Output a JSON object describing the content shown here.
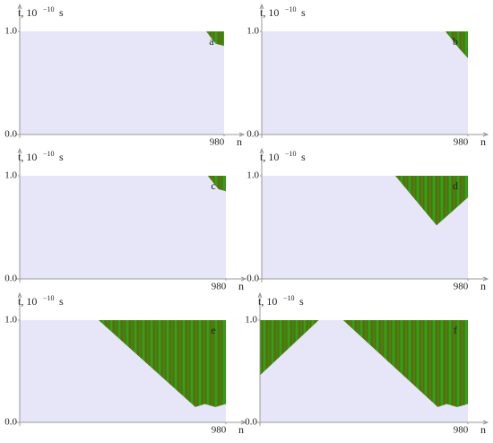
{
  "chart_data": [
    {
      "type": "area",
      "label": "a",
      "y_label": "t, 10",
      "y_label_exp": "−10",
      "y_label_unit": "s",
      "x_label": "n",
      "xlim": [
        0,
        980
      ],
      "ylim": [
        0,
        1
      ],
      "xticks": [
        980
      ],
      "yticks": [
        {
          "value": 0,
          "label": "0.0"
        },
        {
          "value": 1,
          "label": "1.0"
        }
      ],
      "color": "#3a8a12",
      "x": [
        894,
        940,
        980
      ],
      "values": [
        1,
        0.88,
        0.86
      ]
    },
    {
      "type": "area",
      "label": "b",
      "y_label": "t, 10",
      "y_label_exp": "−10",
      "y_label_unit": "s",
      "x_label": "n",
      "xlim": [
        0,
        980
      ],
      "ylim": [
        0,
        1
      ],
      "xticks": [
        980
      ],
      "yticks": [
        {
          "value": 0,
          "label": "0.0"
        },
        {
          "value": 1,
          "label": "1.0"
        }
      ],
      "color": "#3a8a12",
      "x": [
        873,
        940,
        980
      ],
      "values": [
        1,
        0.83,
        0.74
      ]
    },
    {
      "type": "area",
      "label": "c",
      "y_label": "t, 10",
      "y_label_exp": "−10",
      "y_label_unit": "s",
      "x_label": "n",
      "xlim": [
        0,
        980
      ],
      "ylim": [
        0,
        1
      ],
      "xticks": [
        980
      ],
      "yticks": [
        {
          "value": 0,
          "label": "0.0"
        },
        {
          "value": 1,
          "label": "1.0"
        }
      ],
      "color": "#3a8a12",
      "x": [
        894,
        945,
        980
      ],
      "values": [
        1,
        0.87,
        0.85
      ]
    },
    {
      "type": "area",
      "label": "d",
      "y_label": "t, 10",
      "y_label_exp": "−10",
      "y_label_unit": "s",
      "x_label": "n",
      "xlim": [
        0,
        980
      ],
      "ylim": [
        0,
        1
      ],
      "xticks": [
        980
      ],
      "yticks": [
        {
          "value": 0,
          "label": "0.0"
        },
        {
          "value": 1,
          "label": "1.0"
        }
      ],
      "color": "#3a8a12",
      "x": [
        635,
        831,
        980
      ],
      "values": [
        1,
        0.52,
        0.79
      ]
    },
    {
      "type": "area",
      "label": "e",
      "y_label": "t, 10",
      "y_label_exp": "−10",
      "y_label_unit": "s",
      "x_label": "n",
      "xlim": [
        0,
        980
      ],
      "ylim": [
        0,
        1
      ],
      "xticks": [
        980
      ],
      "yticks": [
        {
          "value": 0,
          "label": "0.0"
        },
        {
          "value": 1,
          "label": "1.0"
        }
      ],
      "color": "#3a8a12",
      "x": [
        375,
        835,
        880,
        930,
        980
      ],
      "values": [
        1,
        0.15,
        0.18,
        0.15,
        0.18
      ]
    },
    {
      "type": "area",
      "label": "f",
      "y_label": "t, 10",
      "y_label_exp": "−10",
      "y_label_unit": "s",
      "x_label": "n",
      "xlim": [
        0,
        980
      ],
      "ylim": [
        0,
        1
      ],
      "xticks": [
        980
      ],
      "yticks": [
        {
          "value": 0,
          "label": "0.0"
        },
        {
          "value": 1,
          "label": "1.0"
        }
      ],
      "color": "#3a8a12",
      "x": [
        0,
        277,
        null,
        392,
        838,
        880,
        930,
        980
      ],
      "values": [
        0.46,
        1,
        null,
        1,
        0.15,
        0.18,
        0.15,
        0.18
      ]
    }
  ]
}
